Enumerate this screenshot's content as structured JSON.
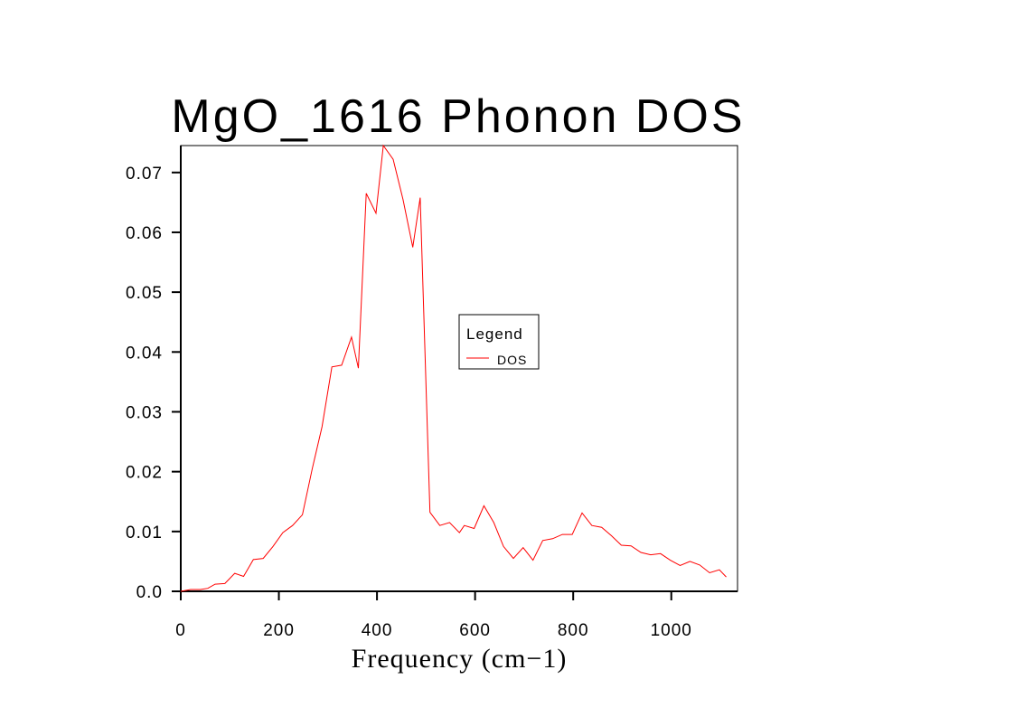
{
  "chart_data": {
    "type": "line",
    "title": "MgO_1616 Phonon DOS",
    "xlabel": "Frequency (cm−1)",
    "ylabel": "",
    "xlim": [
      0,
      1135
    ],
    "ylim": [
      0,
      0.0745
    ],
    "xticks": [
      0,
      200,
      400,
      600,
      800,
      1000
    ],
    "xtick_labels": [
      "0",
      "200",
      "400",
      "600",
      "800",
      "1000"
    ],
    "yticks": [
      0,
      0.01,
      0.02,
      0.03,
      0.04,
      0.05,
      0.06,
      0.07
    ],
    "ytick_labels": [
      "0.0",
      "0.01",
      "0.02",
      "0.03",
      "0.04",
      "0.05",
      "0.06",
      "0.07"
    ],
    "grid": false,
    "legend": {
      "title": "Legend",
      "position": "center-right"
    },
    "series": [
      {
        "name": "DOS",
        "color": "#ff0000",
        "x": [
          0,
          20,
          40,
          55,
          70,
          90,
          110,
          128,
          148,
          168,
          188,
          208,
          228,
          248,
          268,
          288,
          308,
          328,
          348,
          362,
          378,
          398,
          413,
          433,
          453,
          473,
          488,
          508,
          528,
          548,
          568,
          578,
          598,
          618,
          638,
          658,
          678,
          698,
          718,
          738,
          758,
          778,
          798,
          818,
          838,
          858,
          878,
          898,
          918,
          938,
          958,
          978,
          998,
          1018,
          1038,
          1058,
          1078,
          1098,
          1112
        ],
        "values": [
          0.0,
          0.0003,
          0.0003,
          0.0005,
          0.0012,
          0.0013,
          0.003,
          0.0025,
          0.0053,
          0.0055,
          0.0075,
          0.0098,
          0.011,
          0.0128,
          0.0205,
          0.0275,
          0.0375,
          0.0378,
          0.0425,
          0.0373,
          0.0665,
          0.0632,
          0.0745,
          0.0722,
          0.0655,
          0.0575,
          0.0658,
          0.0132,
          0.011,
          0.0115,
          0.0098,
          0.011,
          0.0105,
          0.0143,
          0.0115,
          0.0075,
          0.0055,
          0.0073,
          0.0052,
          0.0085,
          0.0088,
          0.0095,
          0.0095,
          0.0131,
          0.011,
          0.0107,
          0.0093,
          0.0077,
          0.0076,
          0.0065,
          0.0061,
          0.0063,
          0.0052,
          0.0043,
          0.005,
          0.0044,
          0.0031,
          0.0036,
          0.0024
        ]
      }
    ]
  }
}
